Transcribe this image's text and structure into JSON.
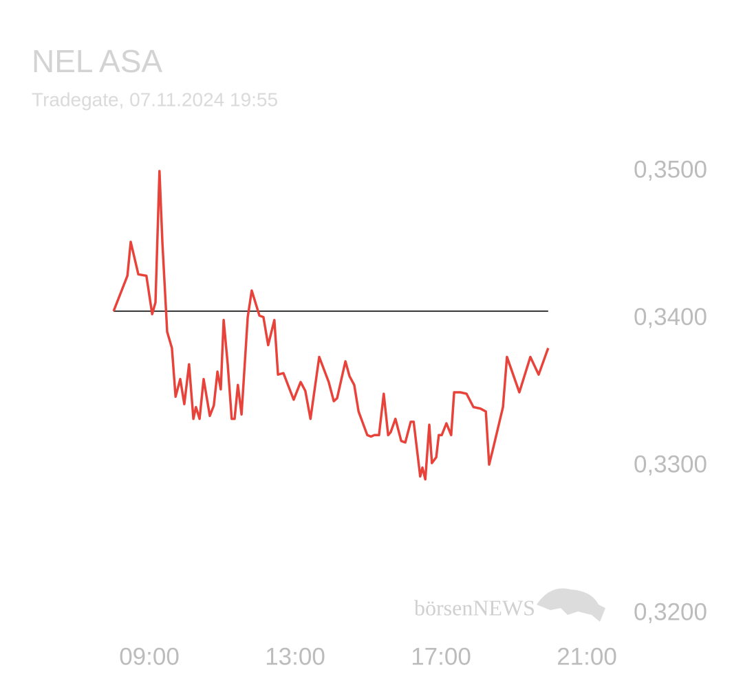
{
  "chart_data": {
    "type": "line",
    "title": "NEL ASA",
    "subtitle": "Tradegate, 07.11.2024 19:55",
    "watermark": "börsenNEWS",
    "reference": 0.3405,
    "reference_color": "#333333",
    "x": [
      8.02,
      8.4,
      8.49,
      8.7,
      8.92,
      9.08,
      9.17,
      9.28,
      9.36,
      9.49,
      9.62,
      9.72,
      9.85,
      9.96,
      10.09,
      10.21,
      10.28,
      10.38,
      10.49,
      10.66,
      10.77,
      10.87,
      10.96,
      11.04,
      11.15,
      11.26,
      11.34,
      11.43,
      11.53,
      11.7,
      11.81,
      12.02,
      12.13,
      12.26,
      12.43,
      12.53,
      12.68,
      12.96,
      13.15,
      13.28,
      13.42,
      13.66,
      13.92,
      14.06,
      14.15,
      14.38,
      14.49,
      14.62,
      14.74,
      14.98,
      15.08,
      15.17,
      15.3,
      15.43,
      15.55,
      15.62,
      15.75,
      15.91,
      16.02,
      16.17,
      16.25,
      16.43,
      16.49,
      16.57,
      16.68,
      16.75,
      16.87,
      16.94,
      17.02,
      17.15,
      17.28,
      17.36,
      17.53,
      17.7,
      17.89,
      18.08,
      18.23,
      18.32,
      18.42,
      18.7,
      18.81,
      19.15,
      19.45,
      19.68,
      19.94
    ],
    "series": [
      {
        "color": "#e8433a",
        "values": [
          0.3405,
          0.3429,
          0.3452,
          0.343,
          0.3429,
          0.3403,
          0.3411,
          0.35,
          0.3451,
          0.3391,
          0.338,
          0.3347,
          0.3359,
          0.3342,
          0.3369,
          0.3332,
          0.334,
          0.3332,
          0.3359,
          0.3334,
          0.3341,
          0.3364,
          0.3352,
          0.3399,
          0.3369,
          0.3332,
          0.3332,
          0.3355,
          0.3335,
          0.3401,
          0.3419,
          0.3402,
          0.3401,
          0.3382,
          0.3399,
          0.3362,
          0.3363,
          0.3345,
          0.3357,
          0.3351,
          0.3332,
          0.3374,
          0.3357,
          0.3344,
          0.3346,
          0.3371,
          0.3361,
          0.3355,
          0.3337,
          0.3321,
          0.332,
          0.3321,
          0.3321,
          0.3349,
          0.3321,
          0.3323,
          0.3332,
          0.3317,
          0.3316,
          0.333,
          0.333,
          0.3293,
          0.3299,
          0.3291,
          0.3328,
          0.3302,
          0.3306,
          0.3321,
          0.3321,
          0.3329,
          0.3321,
          0.335,
          0.335,
          0.3349,
          0.334,
          0.3339,
          0.3337,
          0.3301,
          0.3311,
          0.334,
          0.3374,
          0.335,
          0.3374,
          0.3362,
          0.338
        ]
      }
    ],
    "xlim": [
      8,
      21
    ],
    "xticks": [
      {
        "value": 9,
        "label": "09:00"
      },
      {
        "value": 13,
        "label": "13:00"
      },
      {
        "value": 17,
        "label": "17:00"
      },
      {
        "value": 21,
        "label": "21:00"
      }
    ],
    "ylim": [
      0.32,
      0.35
    ],
    "yticks": [
      {
        "value": 0.35,
        "label": "0,3500"
      },
      {
        "value": 0.34,
        "label": "0,3400"
      },
      {
        "value": 0.33,
        "label": "0,3300"
      },
      {
        "value": 0.32,
        "label": "0,3200"
      }
    ]
  }
}
